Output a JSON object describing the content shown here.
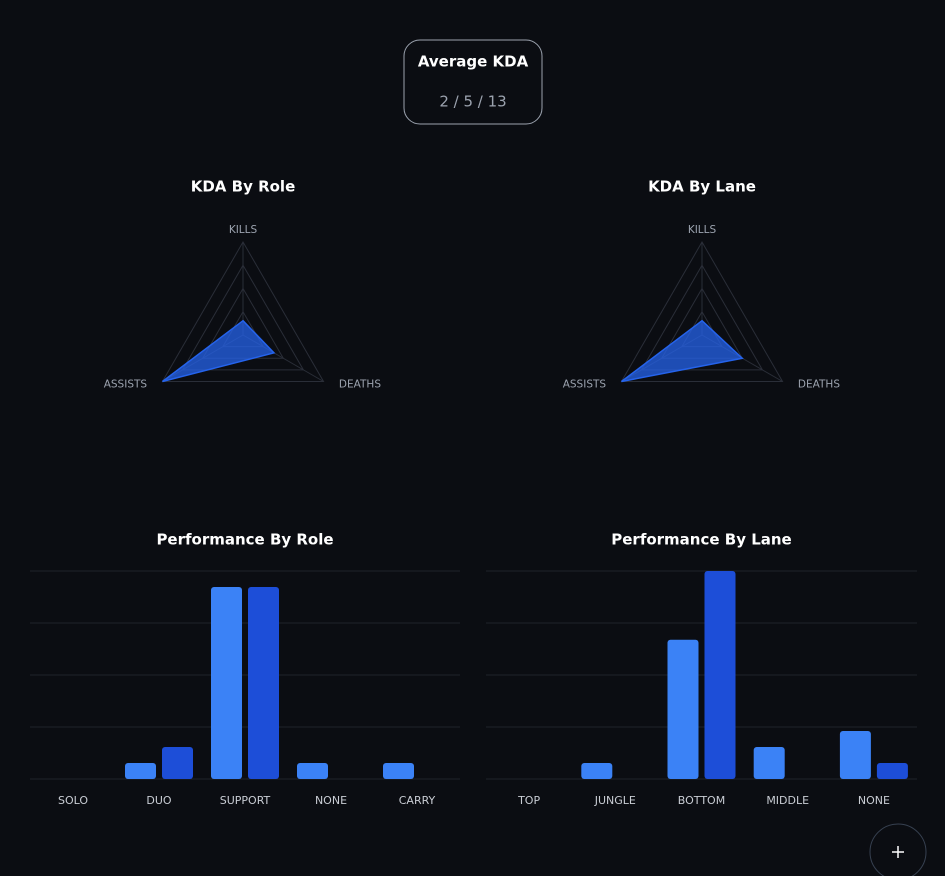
{
  "kda_card": {
    "title": "Average KDA",
    "value": "2 / 5 / 13"
  },
  "chart_data": [
    {
      "type": "radar",
      "title": "KDA By Role",
      "axes": [
        "KILLS",
        "DEATHS",
        "ASSISTS"
      ],
      "values": [
        2,
        5,
        13
      ],
      "color": "#2563eb",
      "rlim": [
        0,
        13
      ],
      "rticks": [
        0,
        3.25,
        6.5,
        9.75,
        13
      ],
      "grid": true
    },
    {
      "type": "radar",
      "title": "KDA By Lane",
      "axes": [
        "KILLS",
        "DEATHS",
        "ASSISTS"
      ],
      "values": [
        2,
        6.5,
        13
      ],
      "color": "#2563eb",
      "rlim": [
        0,
        13
      ],
      "rticks": [
        0,
        3.25,
        6.5,
        9.75,
        13
      ],
      "grid": true
    },
    {
      "type": "bar",
      "title": "Performance By Role",
      "categories": [
        "SOLO",
        "DUO",
        "SUPPORT",
        "NONE",
        "CARRY"
      ],
      "series": [
        {
          "color": "#3b82f6",
          "values": [
            0,
            1,
            12,
            1,
            1
          ]
        },
        {
          "color": "#1d4ed8",
          "values": [
            0,
            2,
            12,
            0,
            0
          ]
        }
      ],
      "ylim": [
        0,
        13
      ],
      "yticks": [
        0,
        3.25,
        6.5,
        9.75,
        13
      ],
      "grid": true,
      "tick_labels": false
    },
    {
      "type": "bar",
      "title": "Performance By Lane",
      "categories": [
        "TOP",
        "JUNGLE",
        "BOTTOM",
        "MIDDLE",
        "NONE"
      ],
      "series": [
        {
          "color": "#3b82f6",
          "values": [
            0,
            1,
            8.7,
            2,
            3
          ]
        },
        {
          "color": "#1d4ed8",
          "values": [
            0,
            0,
            13,
            0,
            1
          ]
        }
      ],
      "ylim": [
        0,
        13
      ],
      "yticks": [
        0,
        3.25,
        6.5,
        9.75,
        13
      ],
      "grid": true,
      "tick_labels": false
    }
  ]
}
